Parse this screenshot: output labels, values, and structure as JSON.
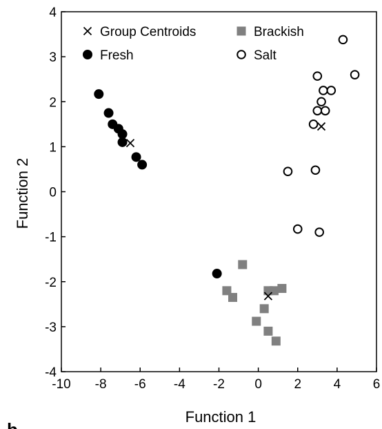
{
  "panel_label": "b",
  "chart_data": {
    "type": "scatter",
    "xlabel": "Function 1",
    "ylabel": "Function 2",
    "xlim": [
      -10,
      6
    ],
    "ylim": [
      -4,
      4
    ],
    "xticks": [
      -10,
      -8,
      -6,
      -4,
      -2,
      0,
      2,
      4,
      6
    ],
    "yticks": [
      -4,
      -3,
      -2,
      -1,
      0,
      1,
      2,
      3,
      4
    ],
    "grid": false,
    "legend_position": "top",
    "colors": {
      "fresh": "#000000",
      "brackish": "#808080",
      "salt": "#000000",
      "centroid": "#000000"
    },
    "series": [
      {
        "name": "Group Centroids",
        "marker": "x",
        "points": [
          [
            -6.5,
            1.08
          ],
          [
            0.5,
            -2.32
          ],
          [
            3.2,
            1.45
          ]
        ]
      },
      {
        "name": "Brackish",
        "marker": "square",
        "points": [
          [
            -0.8,
            -1.62
          ],
          [
            -1.6,
            -2.2
          ],
          [
            -1.3,
            -2.35
          ],
          [
            0.5,
            -2.2
          ],
          [
            0.8,
            -2.2
          ],
          [
            1.2,
            -2.15
          ],
          [
            0.3,
            -2.6
          ],
          [
            -0.1,
            -2.88
          ],
          [
            0.5,
            -3.1
          ],
          [
            0.9,
            -3.32
          ]
        ]
      },
      {
        "name": "Fresh",
        "marker": "filled-circle",
        "points": [
          [
            -8.1,
            2.17
          ],
          [
            -7.6,
            1.75
          ],
          [
            -7.4,
            1.5
          ],
          [
            -7.1,
            1.4
          ],
          [
            -6.9,
            1.28
          ],
          [
            -6.9,
            1.1
          ],
          [
            -6.2,
            0.77
          ],
          [
            -5.9,
            0.6
          ],
          [
            -2.1,
            -1.82
          ]
        ]
      },
      {
        "name": "Salt",
        "marker": "open-circle",
        "points": [
          [
            4.3,
            3.38
          ],
          [
            3.0,
            2.57
          ],
          [
            4.9,
            2.6
          ],
          [
            3.3,
            2.25
          ],
          [
            3.7,
            2.25
          ],
          [
            3.2,
            2.0
          ],
          [
            3.0,
            1.8
          ],
          [
            3.4,
            1.8
          ],
          [
            2.8,
            1.5
          ],
          [
            1.5,
            0.45
          ],
          [
            2.9,
            0.48
          ],
          [
            2.0,
            -0.83
          ],
          [
            3.1,
            -0.9
          ]
        ]
      }
    ]
  }
}
